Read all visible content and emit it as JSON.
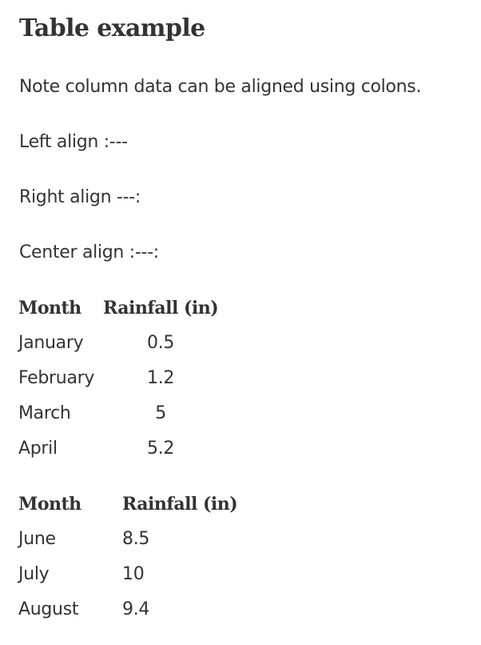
{
  "heading": "Table example",
  "note": "Note column data can be aligned using colons.",
  "align_left": "Left align :---",
  "align_right": "Right align ---:",
  "align_center": "Center align :---:",
  "table1": {
    "headers": [
      "Month",
      "Rainfall (in)"
    ],
    "rows": [
      [
        "January",
        "0.5"
      ],
      [
        "February",
        "1.2"
      ],
      [
        "March",
        "5"
      ],
      [
        "April",
        "5.2"
      ]
    ]
  },
  "table2": {
    "headers": [
      "Month",
      "Rainfall (in)"
    ],
    "rows": [
      [
        "June",
        "8.5"
      ],
      [
        "July",
        "10"
      ],
      [
        "August",
        "9.4"
      ]
    ]
  }
}
